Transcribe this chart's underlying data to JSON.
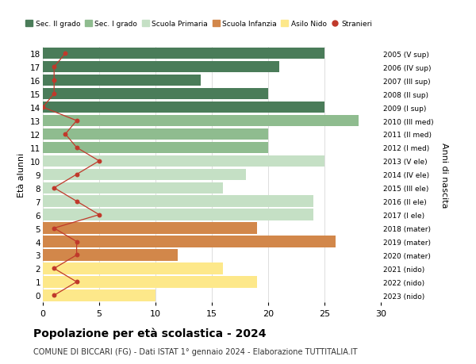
{
  "ages": [
    18,
    17,
    16,
    15,
    14,
    13,
    12,
    11,
    10,
    9,
    8,
    7,
    6,
    5,
    4,
    3,
    2,
    1,
    0
  ],
  "bar_values": [
    25,
    21,
    14,
    20,
    25,
    28,
    20,
    20,
    25,
    18,
    16,
    24,
    24,
    19,
    26,
    12,
    16,
    19,
    10
  ],
  "bar_colors": [
    "#4a7c59",
    "#4a7c59",
    "#4a7c59",
    "#4a7c59",
    "#4a7c59",
    "#8fbc8f",
    "#8fbc8f",
    "#8fbc8f",
    "#c5e0c5",
    "#c5e0c5",
    "#c5e0c5",
    "#c5e0c5",
    "#c5e0c5",
    "#d2874a",
    "#d2874a",
    "#d2874a",
    "#fde88a",
    "#fde88a",
    "#fde88a"
  ],
  "right_labels": [
    "2005 (V sup)",
    "2006 (IV sup)",
    "2007 (III sup)",
    "2008 (II sup)",
    "2009 (I sup)",
    "2010 (III med)",
    "2011 (II med)",
    "2012 (I med)",
    "2013 (V ele)",
    "2014 (IV ele)",
    "2015 (III ele)",
    "2016 (II ele)",
    "2017 (I ele)",
    "2018 (mater)",
    "2019 (mater)",
    "2020 (mater)",
    "2021 (nido)",
    "2022 (nido)",
    "2023 (nido)"
  ],
  "stranieri_values": [
    2,
    1,
    1,
    1,
    0,
    3,
    2,
    3,
    5,
    3,
    1,
    3,
    5,
    1,
    3,
    3,
    1,
    3,
    1
  ],
  "legend_labels": [
    "Sec. II grado",
    "Sec. I grado",
    "Scuola Primaria",
    "Scuola Infanzia",
    "Asilo Nido",
    "Stranieri"
  ],
  "legend_colors": [
    "#4a7c59",
    "#8fbc8f",
    "#c5e0c5",
    "#d2874a",
    "#fde88a",
    "#c0392b"
  ],
  "title": "Popolazione per età scolastica - 2024",
  "subtitle": "COMUNE DI BICCARI (FG) - Dati ISTAT 1° gennaio 2024 - Elaborazione TUTTITALIA.IT",
  "ylabel_left": "Età alunni",
  "ylabel_right": "Anni di nascita",
  "xlim": [
    0,
    30
  ],
  "background_color": "#ffffff",
  "grid_color": "#d0d0d0"
}
